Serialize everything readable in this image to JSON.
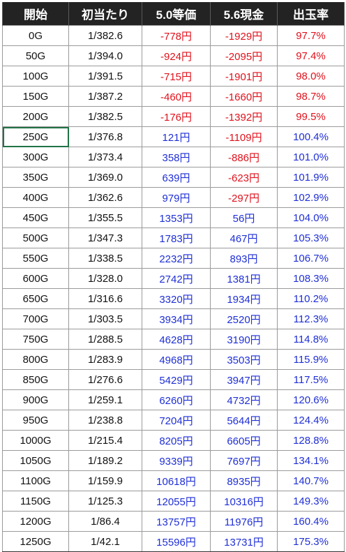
{
  "headers": [
    "開始",
    "初当たり",
    "5.0等価",
    "5.6現金",
    "出玉率"
  ],
  "colors": {
    "negative": "#e0111b",
    "positive": "#1f2fd6",
    "header_bg": "#232323",
    "selection": "#217346"
  },
  "selected_cell": "250G",
  "rows": [
    {
      "start": "0G",
      "first_hit": "1/382.6",
      "equal50": "-778円",
      "cash56": "-1929円",
      "payout": "97.7%"
    },
    {
      "start": "50G",
      "first_hit": "1/394.0",
      "equal50": "-924円",
      "cash56": "-2095円",
      "payout": "97.4%"
    },
    {
      "start": "100G",
      "first_hit": "1/391.5",
      "equal50": "-715円",
      "cash56": "-1901円",
      "payout": "98.0%"
    },
    {
      "start": "150G",
      "first_hit": "1/387.2",
      "equal50": "-460円",
      "cash56": "-1660円",
      "payout": "98.7%"
    },
    {
      "start": "200G",
      "first_hit": "1/382.5",
      "equal50": "-176円",
      "cash56": "-1392円",
      "payout": "99.5%"
    },
    {
      "start": "250G",
      "first_hit": "1/376.8",
      "equal50": "121円",
      "cash56": "-1109円",
      "payout": "100.4%"
    },
    {
      "start": "300G",
      "first_hit": "1/373.4",
      "equal50": "358円",
      "cash56": "-886円",
      "payout": "101.0%"
    },
    {
      "start": "350G",
      "first_hit": "1/369.0",
      "equal50": "639円",
      "cash56": "-623円",
      "payout": "101.9%"
    },
    {
      "start": "400G",
      "first_hit": "1/362.6",
      "equal50": "979円",
      "cash56": "-297円",
      "payout": "102.9%"
    },
    {
      "start": "450G",
      "first_hit": "1/355.5",
      "equal50": "1353円",
      "cash56": "56円",
      "payout": "104.0%"
    },
    {
      "start": "500G",
      "first_hit": "1/347.3",
      "equal50": "1783円",
      "cash56": "467円",
      "payout": "105.3%"
    },
    {
      "start": "550G",
      "first_hit": "1/338.5",
      "equal50": "2232円",
      "cash56": "893円",
      "payout": "106.7%"
    },
    {
      "start": "600G",
      "first_hit": "1/328.0",
      "equal50": "2742円",
      "cash56": "1381円",
      "payout": "108.3%"
    },
    {
      "start": "650G",
      "first_hit": "1/316.6",
      "equal50": "3320円",
      "cash56": "1934円",
      "payout": "110.2%"
    },
    {
      "start": "700G",
      "first_hit": "1/303.5",
      "equal50": "3934円",
      "cash56": "2520円",
      "payout": "112.3%"
    },
    {
      "start": "750G",
      "first_hit": "1/288.5",
      "equal50": "4628円",
      "cash56": "3190円",
      "payout": "114.8%"
    },
    {
      "start": "800G",
      "first_hit": "1/283.9",
      "equal50": "4968円",
      "cash56": "3503円",
      "payout": "115.9%"
    },
    {
      "start": "850G",
      "first_hit": "1/276.6",
      "equal50": "5429円",
      "cash56": "3947円",
      "payout": "117.5%"
    },
    {
      "start": "900G",
      "first_hit": "1/259.1",
      "equal50": "6260円",
      "cash56": "4732円",
      "payout": "120.6%"
    },
    {
      "start": "950G",
      "first_hit": "1/238.8",
      "equal50": "7204円",
      "cash56": "5644円",
      "payout": "124.4%"
    },
    {
      "start": "1000G",
      "first_hit": "1/215.4",
      "equal50": "8205円",
      "cash56": "6605円",
      "payout": "128.8%"
    },
    {
      "start": "1050G",
      "first_hit": "1/189.2",
      "equal50": "9339円",
      "cash56": "7697円",
      "payout": "134.1%"
    },
    {
      "start": "1100G",
      "first_hit": "1/159.9",
      "equal50": "10618円",
      "cash56": "8935円",
      "payout": "140.7%"
    },
    {
      "start": "1150G",
      "first_hit": "1/125.3",
      "equal50": "12055円",
      "cash56": "10316円",
      "payout": "149.3%"
    },
    {
      "start": "1200G",
      "first_hit": "1/86.4",
      "equal50": "13757円",
      "cash56": "11976円",
      "payout": "160.4%"
    },
    {
      "start": "1250G",
      "first_hit": "1/42.1",
      "equal50": "15596円",
      "cash56": "13731円",
      "payout": "175.3%"
    }
  ]
}
